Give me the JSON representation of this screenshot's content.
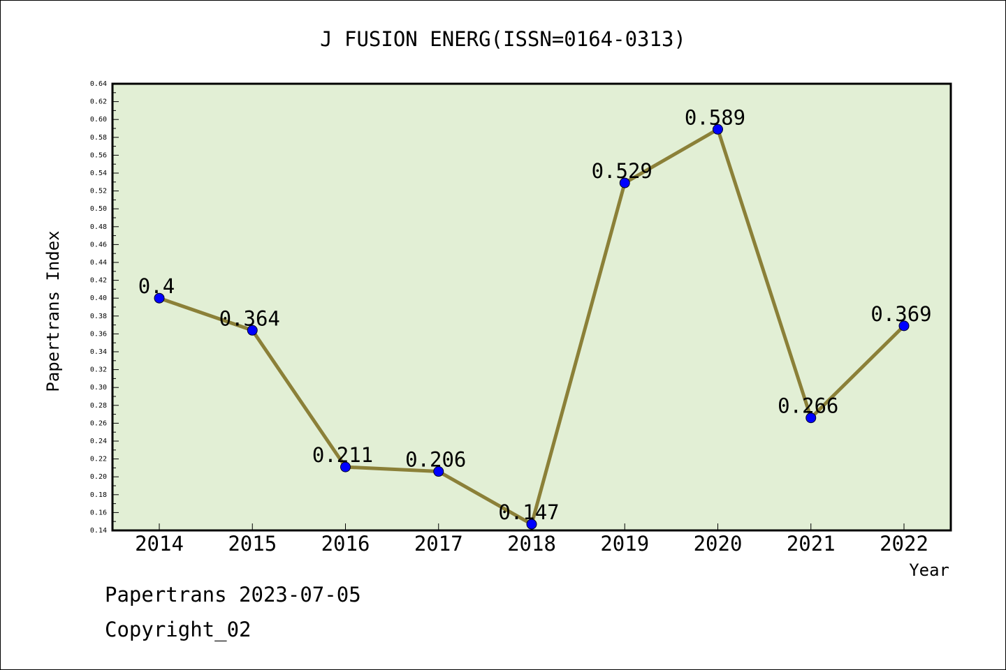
{
  "chart_data": {
    "type": "line",
    "title": "J FUSION ENERG(ISSN=0164-0313)",
    "xlabel": "Year",
    "ylabel": "Papertrans Index",
    "categories": [
      "2014",
      "2015",
      "2016",
      "2017",
      "2018",
      "2019",
      "2020",
      "2021",
      "2022"
    ],
    "values": [
      0.4,
      0.364,
      0.211,
      0.206,
      0.147,
      0.529,
      0.589,
      0.266,
      0.369
    ],
    "data_labels": [
      "0.4",
      "0.364",
      "0.211",
      "0.206",
      "0.147",
      "0.529",
      "0.589",
      "0.266",
      "0.369"
    ],
    "ylim": [
      0.14,
      0.64
    ],
    "y_ticks": [
      "0.14",
      "0.16",
      "0.18",
      "0.20",
      "0.22",
      "0.24",
      "0.26",
      "0.28",
      "0.30",
      "0.32",
      "0.34",
      "0.36",
      "0.38",
      "0.40",
      "0.42",
      "0.44",
      "0.46",
      "0.48",
      "0.50",
      "0.52",
      "0.54",
      "0.56",
      "0.58",
      "0.60",
      "0.62",
      "0.64"
    ],
    "grid": false,
    "colors": {
      "plot_background": "#e2efd5",
      "line": "#8b8038",
      "marker": "#0000ff"
    }
  },
  "footer": {
    "line1": "Papertrans 2023-07-05",
    "line2": "Copyright_02"
  }
}
